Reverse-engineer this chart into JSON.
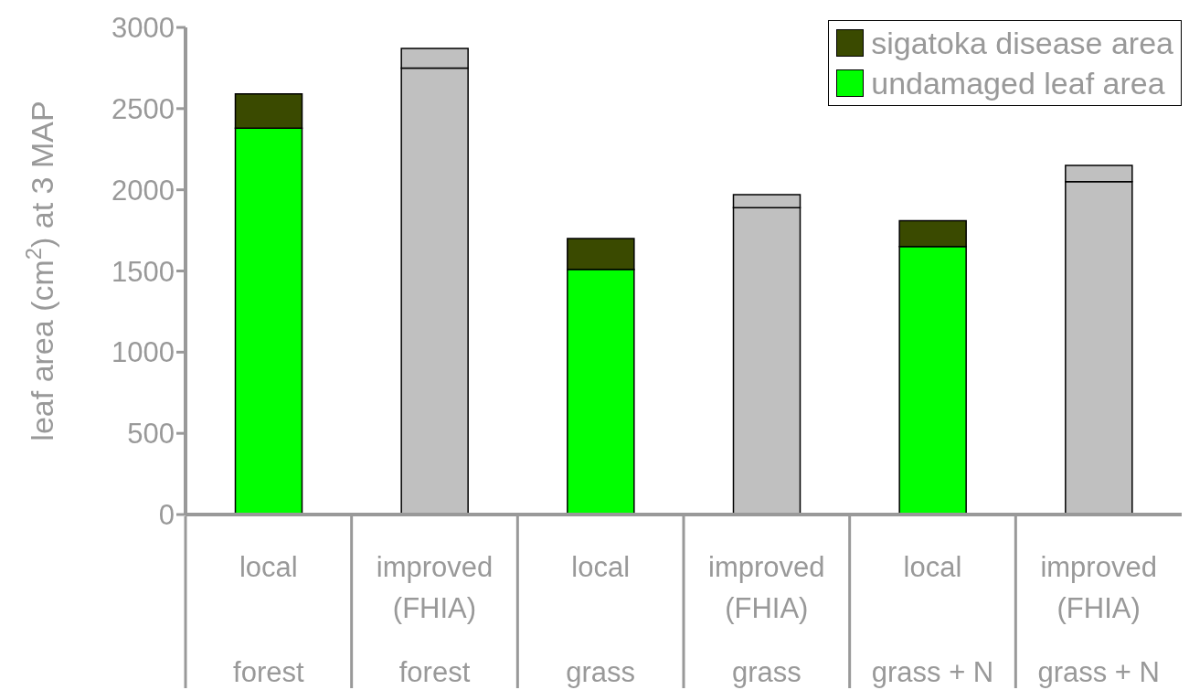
{
  "chart_data": {
    "type": "bar",
    "stacked": true,
    "ylabel": "leaf area (cm$^{2}$) at 3 MAP",
    "categories": [
      "local\n\nforest",
      "improved\n(FHIA)\nforest",
      "local\n\ngrass",
      "improved\n(FHIA)\ngrass",
      "local\n\ngrass + N",
      "improved\n(FHIA)\ngrass + N"
    ],
    "series": [
      {
        "name": "undamaged leaf area",
        "color": "#00ff00",
        "colors": [
          "#00ff00",
          "#c0c0c0",
          "#00ff00",
          "#c0c0c0",
          "#00ff00",
          "#c0c0c0"
        ],
        "values": [
          2380,
          2750,
          1510,
          1890,
          1650,
          2050
        ]
      },
      {
        "name": "sigatoka disease area",
        "color": "#3a4a00",
        "colors": [
          "#3a4a00",
          "#c0c0c0",
          "#3a4a00",
          "#c0c0c0",
          "#3a4a00",
          "#c0c0c0"
        ],
        "values": [
          210,
          120,
          190,
          80,
          160,
          100
        ]
      }
    ],
    "ylim": [
      0,
      3000
    ],
    "yticks": [
      0,
      500,
      1000,
      1500,
      2000,
      2500,
      3000
    ],
    "grid": false,
    "legend": "top right"
  }
}
